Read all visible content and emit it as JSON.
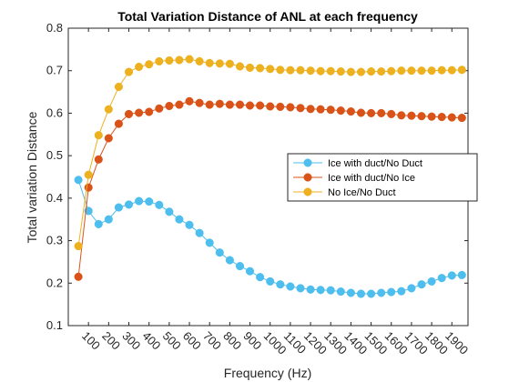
{
  "chart_data": {
    "type": "line",
    "title": "Total Variation Distance of ANL at each frequency",
    "xlabel": "Frequency (Hz)",
    "ylabel": "Total variation Distance",
    "xlim": [
      0,
      1980
    ],
    "ylim": [
      0.1,
      0.8
    ],
    "xticks": [
      100,
      200,
      300,
      400,
      500,
      600,
      700,
      800,
      900,
      1000,
      1100,
      1200,
      1300,
      1400,
      1500,
      1600,
      1700,
      1800,
      1900
    ],
    "yticks": [
      0.1,
      0.2,
      0.3,
      0.4,
      0.5,
      0.6,
      0.7,
      0.8
    ],
    "ytick_labels": [
      "0.1",
      "0.2",
      "0.3",
      "0.4",
      "0.5",
      "0.6",
      "0.7",
      "0.8"
    ],
    "grid": false,
    "legend_position": "right-middle",
    "x": [
      50,
      100,
      150,
      200,
      250,
      300,
      350,
      400,
      450,
      500,
      550,
      600,
      650,
      700,
      750,
      800,
      850,
      900,
      950,
      1000,
      1050,
      1100,
      1150,
      1200,
      1250,
      1300,
      1350,
      1400,
      1450,
      1500,
      1550,
      1600,
      1650,
      1700,
      1750,
      1800,
      1850,
      1900,
      1950
    ],
    "series": [
      {
        "name": "Ice with duct/No Duct",
        "color": "#4DBEEE",
        "values": [
          0.443,
          0.37,
          0.339,
          0.35,
          0.378,
          0.385,
          0.393,
          0.392,
          0.384,
          0.368,
          0.35,
          0.337,
          0.318,
          0.295,
          0.272,
          0.254,
          0.24,
          0.228,
          0.214,
          0.204,
          0.197,
          0.192,
          0.188,
          0.185,
          0.184,
          0.183,
          0.18,
          0.177,
          0.175,
          0.175,
          0.177,
          0.179,
          0.181,
          0.188,
          0.197,
          0.204,
          0.212,
          0.218,
          0.219
        ]
      },
      {
        "name": "Ice with duct/No Ice",
        "color": "#D95319",
        "values": [
          0.215,
          0.425,
          0.491,
          0.541,
          0.575,
          0.598,
          0.601,
          0.603,
          0.611,
          0.617,
          0.62,
          0.628,
          0.624,
          0.62,
          0.622,
          0.62,
          0.62,
          0.618,
          0.618,
          0.616,
          0.615,
          0.614,
          0.612,
          0.61,
          0.609,
          0.608,
          0.606,
          0.604,
          0.601,
          0.6,
          0.6,
          0.598,
          0.595,
          0.594,
          0.593,
          0.592,
          0.591,
          0.59,
          0.589
        ]
      },
      {
        "name": "No Ice/No Duct",
        "color": "#EDB120",
        "values": [
          0.287,
          0.455,
          0.548,
          0.609,
          0.662,
          0.697,
          0.709,
          0.715,
          0.722,
          0.724,
          0.725,
          0.727,
          0.722,
          0.718,
          0.717,
          0.716,
          0.71,
          0.707,
          0.706,
          0.704,
          0.702,
          0.701,
          0.701,
          0.7,
          0.699,
          0.699,
          0.698,
          0.697,
          0.697,
          0.698,
          0.698,
          0.699,
          0.7,
          0.7,
          0.7,
          0.7,
          0.701,
          0.701,
          0.702
        ]
      }
    ]
  }
}
